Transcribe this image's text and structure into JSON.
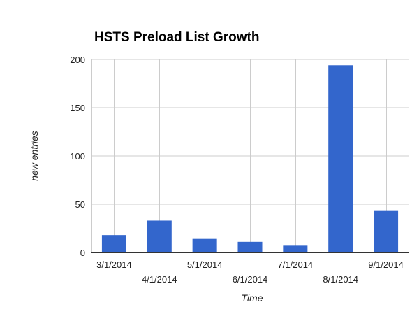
{
  "chart_data": {
    "type": "bar",
    "title": "HSTS Preload List Growth",
    "xlabel": "Time",
    "ylabel": "new entries",
    "categories": [
      "3/1/2014",
      "4/1/2014",
      "5/1/2014",
      "6/1/2014",
      "7/1/2014",
      "8/1/2014",
      "9/1/2014"
    ],
    "series": [
      {
        "values": [
          18,
          33,
          14,
          11,
          7,
          194,
          43
        ],
        "color": "#3366cc"
      }
    ],
    "ylim": [
      0,
      200
    ],
    "yticks": [
      0,
      50,
      100,
      150,
      200
    ],
    "grid": true,
    "legend": "none"
  }
}
